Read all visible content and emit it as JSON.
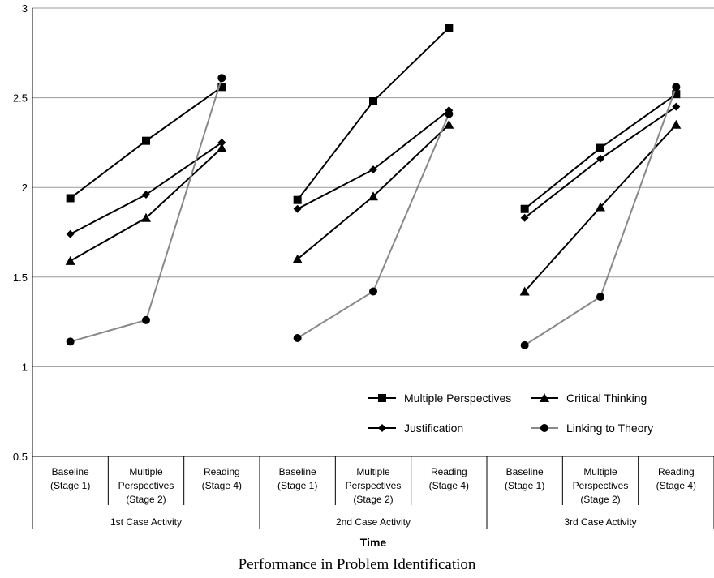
{
  "chart_data": {
    "type": "line",
    "ylim": [
      0.5,
      3
    ],
    "yticks": [
      "0.5",
      "1",
      "1.5",
      "2",
      "2.5",
      "3"
    ],
    "grid": true,
    "legend_position": "bottom-right",
    "xlabel": "Time",
    "groups": [
      {
        "label": "1st Case Activity",
        "categories": [
          "Baseline (Stage 1)",
          "Multiple Perspectives (Stage 2)",
          "Reading (Stage 4)"
        ]
      },
      {
        "label": "2nd Case Activity",
        "categories": [
          "Baseline (Stage 1)",
          "Multiple Perspectives (Stage 2)",
          "Reading (Stage 4)"
        ]
      },
      {
        "label": "3rd Case Activity",
        "categories": [
          "Baseline (Stage 1)",
          "Multiple Perspectives (Stage 2)",
          "Reading (Stage 4)"
        ]
      }
    ],
    "series": [
      {
        "name": "Multiple Perspectives",
        "marker": "square",
        "color": "#000000",
        "values": [
          [
            1.94,
            2.26,
            2.56
          ],
          [
            1.93,
            2.48,
            2.89
          ],
          [
            1.88,
            2.22,
            2.52
          ]
        ]
      },
      {
        "name": "Critical Thinking",
        "marker": "triangle",
        "color": "#000000",
        "values": [
          [
            1.59,
            1.83,
            2.22
          ],
          [
            1.6,
            1.95,
            2.35
          ],
          [
            1.42,
            1.89,
            2.35
          ]
        ]
      },
      {
        "name": "Justification",
        "marker": "diamond",
        "color": "#000000",
        "values": [
          [
            1.74,
            1.96,
            2.25
          ],
          [
            1.88,
            2.1,
            2.43
          ],
          [
            1.83,
            2.16,
            2.45
          ]
        ]
      },
      {
        "name": "Linking to Theory",
        "marker": "circle",
        "color": "#888888",
        "values": [
          [
            1.14,
            1.26,
            2.61
          ],
          [
            1.16,
            1.42,
            2.41
          ],
          [
            1.12,
            1.39,
            2.56
          ]
        ]
      }
    ]
  },
  "caption": "Performance in Problem Identification"
}
